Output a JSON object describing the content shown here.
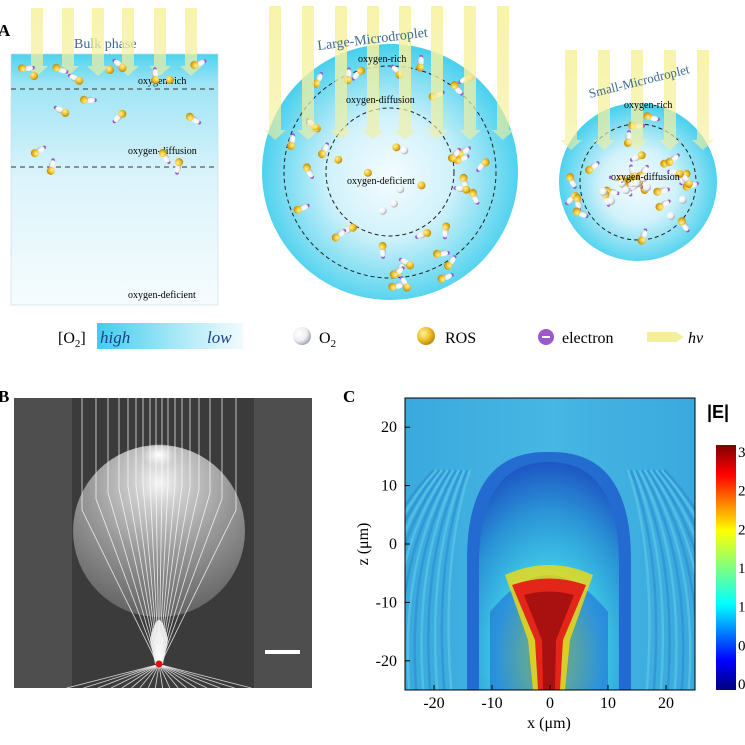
{
  "panel_a": {
    "letter": "A",
    "bulk": {
      "title": "Bulk phase",
      "zones": [
        "oxygen-rich",
        "oxygen-diffusion",
        "oxygen-deficient"
      ]
    },
    "large": {
      "title": "Large-Microdroplet",
      "zones": [
        "oxygen-rich",
        "oxygen-diffusion",
        "oxygen-deficient"
      ]
    },
    "small": {
      "title": "Small-Microdroplet",
      "zones": [
        "oxygen-rich",
        "oxygen-diffusion"
      ]
    },
    "legend": {
      "o2_bracket": "[O",
      "o2_sub": "2",
      "o2_bracket_close": "]",
      "high": "high",
      "low": "low",
      "o2_label": "O",
      "o2_label_sub": "2",
      "ros": "ROS",
      "electron": "electron",
      "hv": "hv"
    },
    "colors": {
      "water_top": "#4dd3ee",
      "water_light": "#e9f8fd",
      "ros": "#e3b318",
      "electron": "#9b59c9",
      "light_beam": "#f3f09a"
    }
  },
  "panel_b": {
    "letter": "B",
    "focus_color": "#e01010"
  },
  "panel_c": {
    "letter": "C",
    "colorbar_title": "|E|",
    "colorbar_ticks": [
      "3",
      "2",
      "2",
      "1",
      "1",
      "0",
      "0"
    ],
    "chart_data": {
      "type": "heatmap",
      "xlabel": "x (μm)",
      "ylabel": "z (μm)",
      "xlim": [
        -25,
        25
      ],
      "ylim": [
        -25,
        25
      ],
      "x_ticks": [
        -20,
        -10,
        0,
        10,
        20
      ],
      "y_ticks": [
        20,
        10,
        0,
        -10,
        -20
      ],
      "colormap": "jet"
    }
  }
}
